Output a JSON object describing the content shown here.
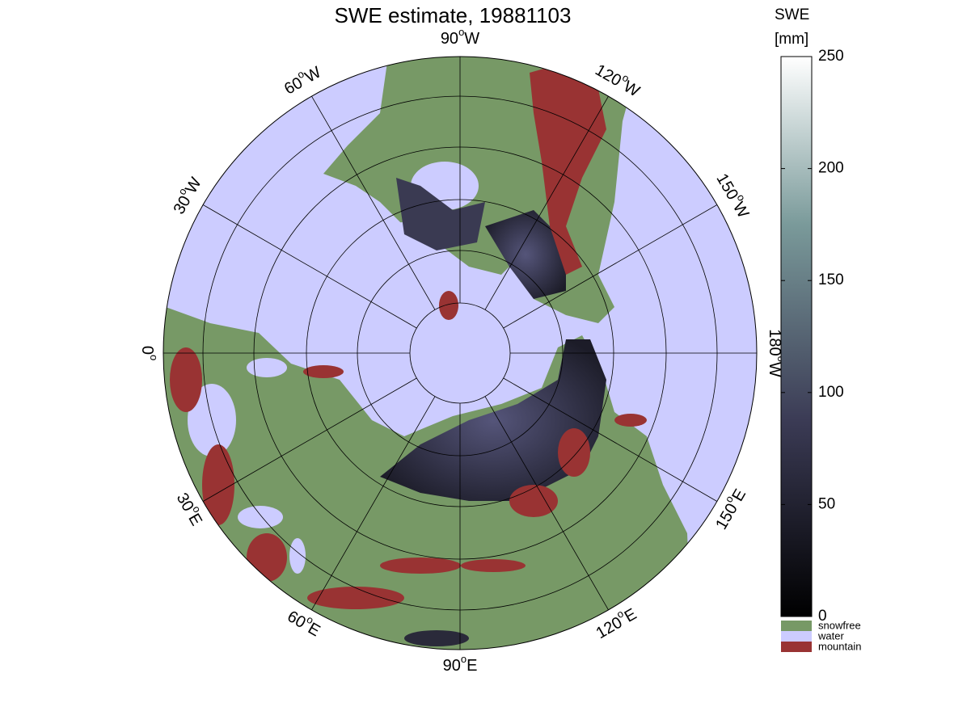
{
  "title": "SWE estimate, 19881103",
  "degree_symbol": "o",
  "meridian_labels": [
    {
      "number": "90",
      "hemisphere": "W"
    },
    {
      "number": "120",
      "hemisphere": "W"
    },
    {
      "number": "150",
      "hemisphere": "W"
    },
    {
      "number": "180",
      "hemisphere": "W"
    },
    {
      "number": "150",
      "hemisphere": "E"
    },
    {
      "number": "120",
      "hemisphere": "E"
    },
    {
      "number": "90",
      "hemisphere": "E"
    },
    {
      "number": "60",
      "hemisphere": "E"
    },
    {
      "number": "30",
      "hemisphere": "E"
    },
    {
      "number": "0"
    },
    {
      "number": "30",
      "hemisphere": "W"
    },
    {
      "number": "60",
      "hemisphere": "W"
    }
  ],
  "colorbar": {
    "title": [
      "SWE",
      "[mm]"
    ],
    "lim": [
      0,
      250
    ],
    "ticks": [
      0,
      50,
      100,
      150,
      200,
      250
    ]
  },
  "legend": [
    {
      "label": "snowfree",
      "color": "#779966"
    },
    {
      "label": "water",
      "color": "#ccccff"
    },
    {
      "label": "mountain",
      "color": "#993333"
    }
  ]
}
